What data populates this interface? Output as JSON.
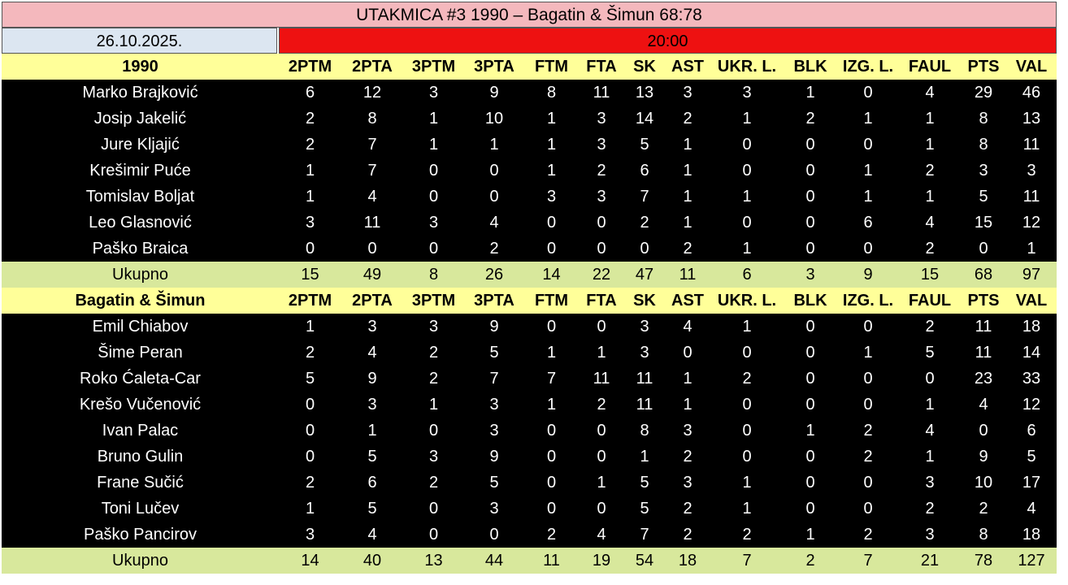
{
  "header": {
    "title": "UTAKMICA #3 1990 – Bagatin & Šimun 68:78",
    "date": "26.10.2025.",
    "time": "20:00"
  },
  "teams": [
    {
      "name": "1990",
      "columns": [
        "2PTM",
        "2PTA",
        "3PTM",
        "3PTA",
        "FTM",
        "FTA",
        "SK",
        "AST",
        "UKR. L.",
        "BLK",
        "IZG. L.",
        "FAUL",
        "PTS",
        "VAL"
      ],
      "players": [
        {
          "name": "Marko Brajković",
          "stats": [
            6,
            12,
            3,
            9,
            8,
            11,
            13,
            3,
            3,
            1,
            0,
            4,
            29,
            46
          ]
        },
        {
          "name": "Josip Jakelić",
          "stats": [
            2,
            8,
            1,
            10,
            1,
            3,
            14,
            2,
            1,
            2,
            1,
            1,
            8,
            13
          ]
        },
        {
          "name": "Jure Kljajić",
          "stats": [
            2,
            7,
            1,
            1,
            1,
            3,
            5,
            1,
            0,
            0,
            0,
            1,
            8,
            11
          ]
        },
        {
          "name": "Krešimir Puće",
          "stats": [
            1,
            7,
            0,
            0,
            1,
            2,
            6,
            1,
            0,
            0,
            1,
            2,
            3,
            3
          ]
        },
        {
          "name": "Tomislav Boljat",
          "stats": [
            1,
            4,
            0,
            0,
            3,
            3,
            7,
            1,
            1,
            0,
            1,
            1,
            5,
            11
          ]
        },
        {
          "name": "Leo Glasnović",
          "stats": [
            3,
            11,
            3,
            4,
            0,
            0,
            2,
            1,
            0,
            0,
            6,
            4,
            15,
            12
          ]
        },
        {
          "name": "Paško Braica",
          "stats": [
            0,
            0,
            0,
            2,
            0,
            0,
            0,
            2,
            1,
            0,
            0,
            2,
            0,
            1
          ]
        }
      ],
      "total": {
        "label": "Ukupno",
        "stats": [
          15,
          49,
          8,
          26,
          14,
          22,
          47,
          11,
          6,
          3,
          9,
          15,
          68,
          97
        ]
      }
    },
    {
      "name": "Bagatin & Šimun",
      "columns": [
        "2PTM",
        "2PTA",
        "3PTM",
        "3PTA",
        "FTM",
        "FTA",
        "SK",
        "AST",
        "UKR. L.",
        "BLK",
        "IZG. L.",
        "FAUL",
        "PTS",
        "VAL"
      ],
      "players": [
        {
          "name": "Emil Chiabov",
          "stats": [
            1,
            3,
            3,
            9,
            0,
            0,
            3,
            4,
            1,
            0,
            0,
            2,
            11,
            18
          ]
        },
        {
          "name": "Šime Peran",
          "stats": [
            2,
            4,
            2,
            5,
            1,
            1,
            3,
            0,
            0,
            0,
            1,
            5,
            11,
            14
          ]
        },
        {
          "name": "Roko Ćaleta-Car",
          "stats": [
            5,
            9,
            2,
            7,
            7,
            11,
            11,
            1,
            2,
            0,
            0,
            0,
            23,
            33
          ]
        },
        {
          "name": "Krešo Vučenović",
          "stats": [
            0,
            3,
            1,
            3,
            1,
            2,
            11,
            1,
            0,
            0,
            0,
            1,
            4,
            12
          ]
        },
        {
          "name": "Ivan Palac",
          "stats": [
            0,
            1,
            0,
            3,
            0,
            0,
            8,
            3,
            0,
            1,
            2,
            4,
            0,
            6
          ]
        },
        {
          "name": "Bruno Gulin",
          "stats": [
            0,
            5,
            3,
            9,
            0,
            0,
            1,
            2,
            0,
            0,
            2,
            1,
            9,
            5
          ]
        },
        {
          "name": "Frane Sučić",
          "stats": [
            2,
            6,
            2,
            5,
            0,
            1,
            5,
            3,
            1,
            0,
            0,
            3,
            10,
            17
          ]
        },
        {
          "name": "Toni Lučev",
          "stats": [
            1,
            5,
            0,
            3,
            0,
            0,
            5,
            2,
            1,
            0,
            0,
            2,
            2,
            4
          ]
        },
        {
          "name": "Paško Pancirov",
          "stats": [
            3,
            4,
            0,
            0,
            2,
            4,
            7,
            2,
            2,
            1,
            2,
            3,
            8,
            18
          ]
        }
      ],
      "total": {
        "label": "Ukupno",
        "stats": [
          14,
          40,
          13,
          44,
          11,
          19,
          54,
          18,
          7,
          2,
          7,
          21,
          78,
          127
        ]
      }
    }
  ]
}
